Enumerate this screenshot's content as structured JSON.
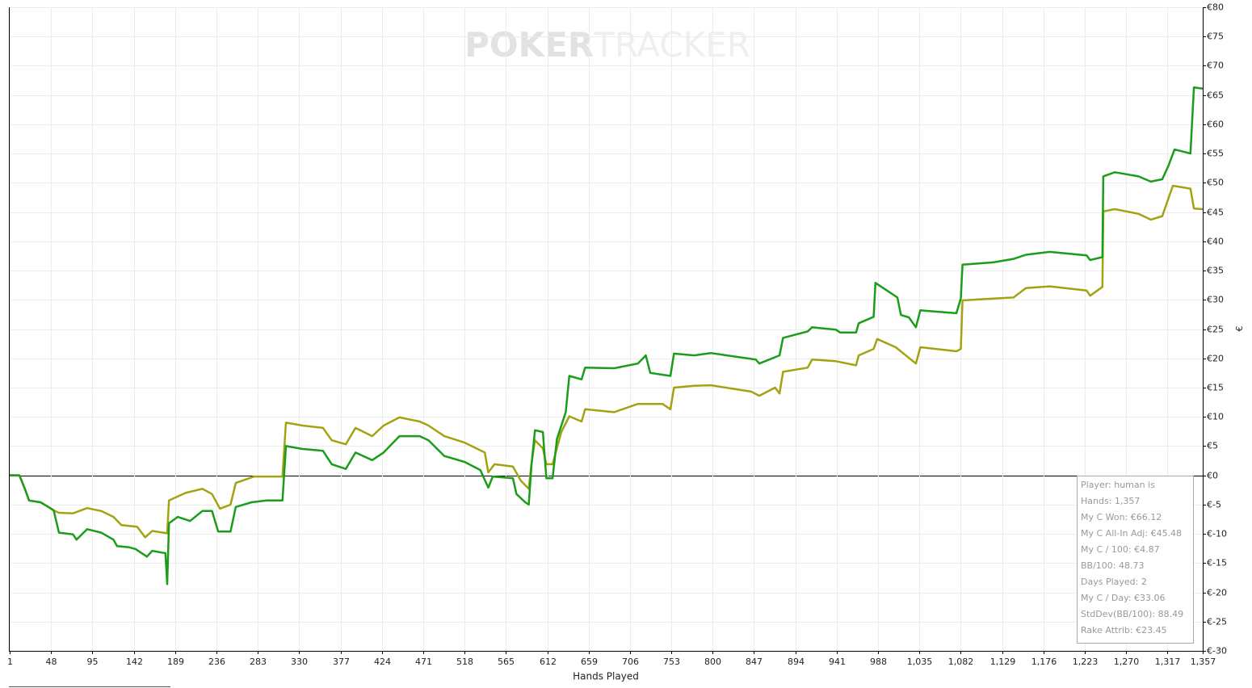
{
  "chart_data": {
    "type": "line",
    "watermark": [
      "POKER",
      "TRACKER"
    ],
    "x_label": "Hands Played",
    "y_label": "€",
    "xlim": [
      1,
      1357
    ],
    "ylim": [
      -30,
      80
    ],
    "grid": true,
    "xticks": [
      1,
      48,
      95,
      142,
      189,
      236,
      283,
      330,
      377,
      424,
      471,
      518,
      565,
      612,
      659,
      706,
      753,
      800,
      847,
      894,
      941,
      988,
      {
        "value": 1035,
        "label": "1,035"
      },
      {
        "value": 1082,
        "label": "1,082"
      },
      {
        "value": 1129,
        "label": "1,129"
      },
      {
        "value": 1176,
        "label": "1,176"
      },
      {
        "value": 1223,
        "label": "1,223"
      },
      {
        "value": 1270,
        "label": "1,270"
      },
      {
        "value": 1317,
        "label": "1,317"
      },
      {
        "value": 1357,
        "label": "1,357"
      }
    ],
    "yticks": [
      {
        "value": 80,
        "label": "€80"
      },
      {
        "value": 75,
        "label": "€75"
      },
      {
        "value": 70,
        "label": "€70"
      },
      {
        "value": 65,
        "label": "€65"
      },
      {
        "value": 60,
        "label": "€60"
      },
      {
        "value": 55,
        "label": "€55"
      },
      {
        "value": 50,
        "label": "€50"
      },
      {
        "value": 45,
        "label": "€45"
      },
      {
        "value": 40,
        "label": "€40"
      },
      {
        "value": 35,
        "label": "€35"
      },
      {
        "value": 30,
        "label": "€30"
      },
      {
        "value": 25,
        "label": "€25"
      },
      {
        "value": 20,
        "label": "€20"
      },
      {
        "value": 15,
        "label": "€15"
      },
      {
        "value": 10,
        "label": "€10"
      },
      {
        "value": 5,
        "label": "€5"
      },
      {
        "value": 0,
        "label": "€0"
      },
      {
        "value": -5,
        "label": "€-5"
      },
      {
        "value": -10,
        "label": "€-10"
      },
      {
        "value": -15,
        "label": "€-15"
      },
      {
        "value": -20,
        "label": "€-20"
      },
      {
        "value": -25,
        "label": "€-25"
      },
      {
        "value": -30,
        "label": "€-30"
      }
    ],
    "series": [
      {
        "color": "#1a9e1a",
        "x": [
          1,
          12,
          18,
          23,
          36,
          45,
          51,
          57,
          73,
          77,
          89,
          105,
          119,
          123,
          137,
          144,
          157,
          163,
          174,
          178,
          180,
          182,
          192,
          206,
          220,
          231,
          238,
          252,
          258,
          276,
          293,
          311,
          315,
          334,
          357,
          367,
          383,
          394,
          413,
          426,
          444,
          467,
          477,
          495,
          518,
          536,
          545,
          550,
          573,
          577,
          587,
          591,
          594,
          598,
          607,
          611,
          618,
          623,
          633,
          637,
          651,
          655,
          688,
          715,
          724,
          729,
          752,
          756,
          779,
          798,
          816,
          849,
          853,
          876,
          880,
          908,
          913,
          940,
          945,
          963,
          966,
          983,
          985,
          999,
          1010,
          1014,
          1023,
          1031,
          1036,
          1077,
          1082,
          1084,
          1119,
          1142,
          1156,
          1183,
          1225,
          1229,
          1243,
          1244,
          1257,
          1284,
          1298,
          1311,
          1318,
          1325,
          1343,
          1347,
          1357
        ],
        "values": [
          0,
          0,
          -2.2,
          -4.3,
          -4.6,
          -5.4,
          -6,
          -9.8,
          -10.1,
          -11,
          -9.2,
          -9.8,
          -11,
          -12.1,
          -12.3,
          -12.6,
          -13.9,
          -12.9,
          -13.2,
          -13.3,
          -18.6,
          -8.2,
          -7.1,
          -7.8,
          -6.1,
          -6.1,
          -9.6,
          -9.6,
          -5.4,
          -4.6,
          -4.3,
          -4.3,
          5,
          4.5,
          4.2,
          1.9,
          1.1,
          3.9,
          2.6,
          3.9,
          6.7,
          6.7,
          6,
          3.3,
          2.3,
          0.9,
          -2.1,
          -0.2,
          -0.5,
          -3.2,
          -4.6,
          -5,
          1.6,
          7.7,
          7.4,
          -0.5,
          -0.5,
          6.2,
          10.8,
          17,
          16.4,
          18.4,
          18.3,
          19.1,
          20.5,
          17.5,
          17,
          20.8,
          20.5,
          20.9,
          20.5,
          19.8,
          19.1,
          20.5,
          23.5,
          24.6,
          25.3,
          24.9,
          24.4,
          24.4,
          26,
          27.1,
          32.9,
          31.5,
          30.4,
          27.4,
          27,
          25.3,
          28.2,
          27.7,
          30.2,
          36,
          36.4,
          37,
          37.7,
          38.2,
          37.6,
          36.8,
          37.3,
          51.1,
          51.8,
          51.1,
          50.2,
          50.6,
          52.9,
          55.7,
          55,
          66.3,
          66.1
        ]
      },
      {
        "color": "#a3a312",
        "x": [
          1,
          12,
          18,
          23,
          36,
          45,
          51,
          57,
          73,
          89,
          105,
          119,
          128,
          146,
          155,
          163,
          180,
          182,
          201,
          220,
          231,
          240,
          252,
          258,
          279,
          311,
          315,
          334,
          357,
          367,
          383,
          394,
          413,
          426,
          444,
          467,
          477,
          495,
          518,
          541,
          545,
          552,
          573,
          582,
          591,
          594,
          598,
          607,
          611,
          618,
          628,
          637,
          651,
          655,
          688,
          715,
          729,
          743,
          752,
          756,
          779,
          798,
          844,
          853,
          871,
          876,
          880,
          908,
          913,
          940,
          963,
          966,
          983,
          987,
          1008,
          1031,
          1036,
          1077,
          1082,
          1084,
          1119,
          1142,
          1156,
          1183,
          1225,
          1229,
          1243,
          1244,
          1257,
          1284,
          1298,
          1311,
          1323,
          1343,
          1347,
          1357
        ],
        "values": [
          0,
          0,
          -2.2,
          -4.3,
          -4.6,
          -5.4,
          -6,
          -6.4,
          -6.5,
          -5.6,
          -6.1,
          -7.1,
          -8.5,
          -8.8,
          -10.6,
          -9.5,
          -9.9,
          -4.3,
          -3,
          -2.3,
          -3.2,
          -5.7,
          -5,
          -1.3,
          -0.2,
          -0.2,
          9,
          8.5,
          8.1,
          6,
          5.3,
          8.1,
          6.7,
          8.5,
          9.9,
          9.2,
          8.5,
          6.7,
          5.6,
          3.9,
          0.5,
          1.9,
          1.5,
          -0.9,
          -2.3,
          1.9,
          6,
          4.6,
          1.9,
          1.9,
          7.4,
          10.1,
          9.2,
          11.3,
          10.8,
          12.2,
          12.2,
          12.2,
          11.3,
          15,
          15.3,
          15.4,
          14.3,
          13.6,
          15,
          14,
          17.7,
          18.4,
          19.8,
          19.5,
          18.8,
          20.5,
          21.6,
          23.3,
          21.9,
          19.1,
          21.9,
          21.2,
          21.6,
          29.9,
          30.2,
          30.4,
          32,
          32.3,
          31.6,
          30.7,
          32.2,
          45.1,
          45.5,
          44.7,
          43.7,
          44.3,
          49.5,
          49,
          45.6,
          45.5
        ]
      }
    ],
    "info_box": [
      "Player: human is",
      "Hands: 1,357",
      "My C Won: €66.12",
      "My C All-In Adj: €45.48",
      "My C / 100: €4.87",
      "BB/100: 48.73",
      "Days Played: 2",
      "My C / Day: €33.06",
      "StdDev(BB/100): 88.49",
      "Rake Attrib: €23.45"
    ]
  }
}
